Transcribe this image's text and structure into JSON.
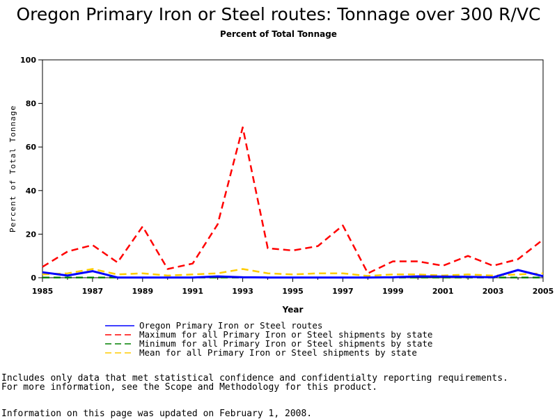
{
  "chart_data": {
    "type": "line",
    "title": "Oregon Primary Iron or Steel routes: Tonnage over 300 R/VC",
    "subtitle": "Percent of Total Tonnage",
    "xlabel": "Year",
    "ylabel": "Percent of Total Tonnage",
    "xlim": [
      1985,
      2005
    ],
    "ylim": [
      0,
      100
    ],
    "xticks": [
      1985,
      1987,
      1989,
      1991,
      1993,
      1995,
      1997,
      1999,
      2001,
      2003,
      2005
    ],
    "yticks": [
      0,
      20,
      40,
      60,
      80,
      100
    ],
    "x": [
      1985,
      1986,
      1987,
      1988,
      1989,
      1990,
      1991,
      1992,
      1993,
      1994,
      1995,
      1996,
      1997,
      1998,
      1999,
      2000,
      2001,
      2002,
      2003,
      2004,
      2005
    ],
    "legend_position": "bottom",
    "grid": false,
    "series": [
      {
        "name": "Oregon Primary Iron or Steel routes",
        "color": "#0000ff",
        "style": "solid",
        "values": [
          2.5,
          1.0,
          3.0,
          0.1,
          0.1,
          0.1,
          0.1,
          0.6,
          0.2,
          0.1,
          0.1,
          0.1,
          0.1,
          0.1,
          0.2,
          0.6,
          0.5,
          0.4,
          0.2,
          3.5,
          0.7
        ]
      },
      {
        "name": "Maximum for all Primary Iron or Steel shipments by state",
        "color": "#ff0000",
        "style": "dashed",
        "values": [
          5.0,
          12.0,
          15.0,
          7.0,
          23.5,
          4.0,
          6.5,
          24.5,
          69.0,
          13.5,
          12.5,
          14.5,
          24.0,
          2.0,
          7.5,
          7.5,
          5.5,
          10.0,
          5.5,
          8.5,
          17.5
        ]
      },
      {
        "name": "Minimum for all Primary Iron or Steel shipments by state",
        "color": "#008000",
        "style": "dashed",
        "values": [
          0.1,
          0.1,
          0.1,
          0.1,
          0.1,
          0.1,
          0.1,
          0.1,
          0.1,
          0.1,
          0.1,
          0.1,
          0.1,
          0.1,
          0.1,
          0.1,
          0.1,
          0.1,
          0.1,
          0.1,
          0.1
        ]
      },
      {
        "name": "Mean for all Primary Iron or Steel shipments by state",
        "color": "#ffcc00",
        "style": "dashed",
        "values": [
          1.5,
          2.0,
          4.0,
          1.5,
          2.0,
          1.0,
          1.5,
          2.0,
          4.0,
          2.0,
          1.5,
          2.0,
          2.0,
          0.8,
          1.5,
          1.5,
          1.0,
          1.5,
          1.0,
          1.5,
          2.0
        ]
      }
    ]
  },
  "notes": {
    "line1": "Includes only data that met statistical confidence and confidentialty reporting requirements.",
    "line2": "For more information, see the Scope and Methodology for this product.",
    "updated": "Information on this page was updated on February 1, 2008."
  }
}
